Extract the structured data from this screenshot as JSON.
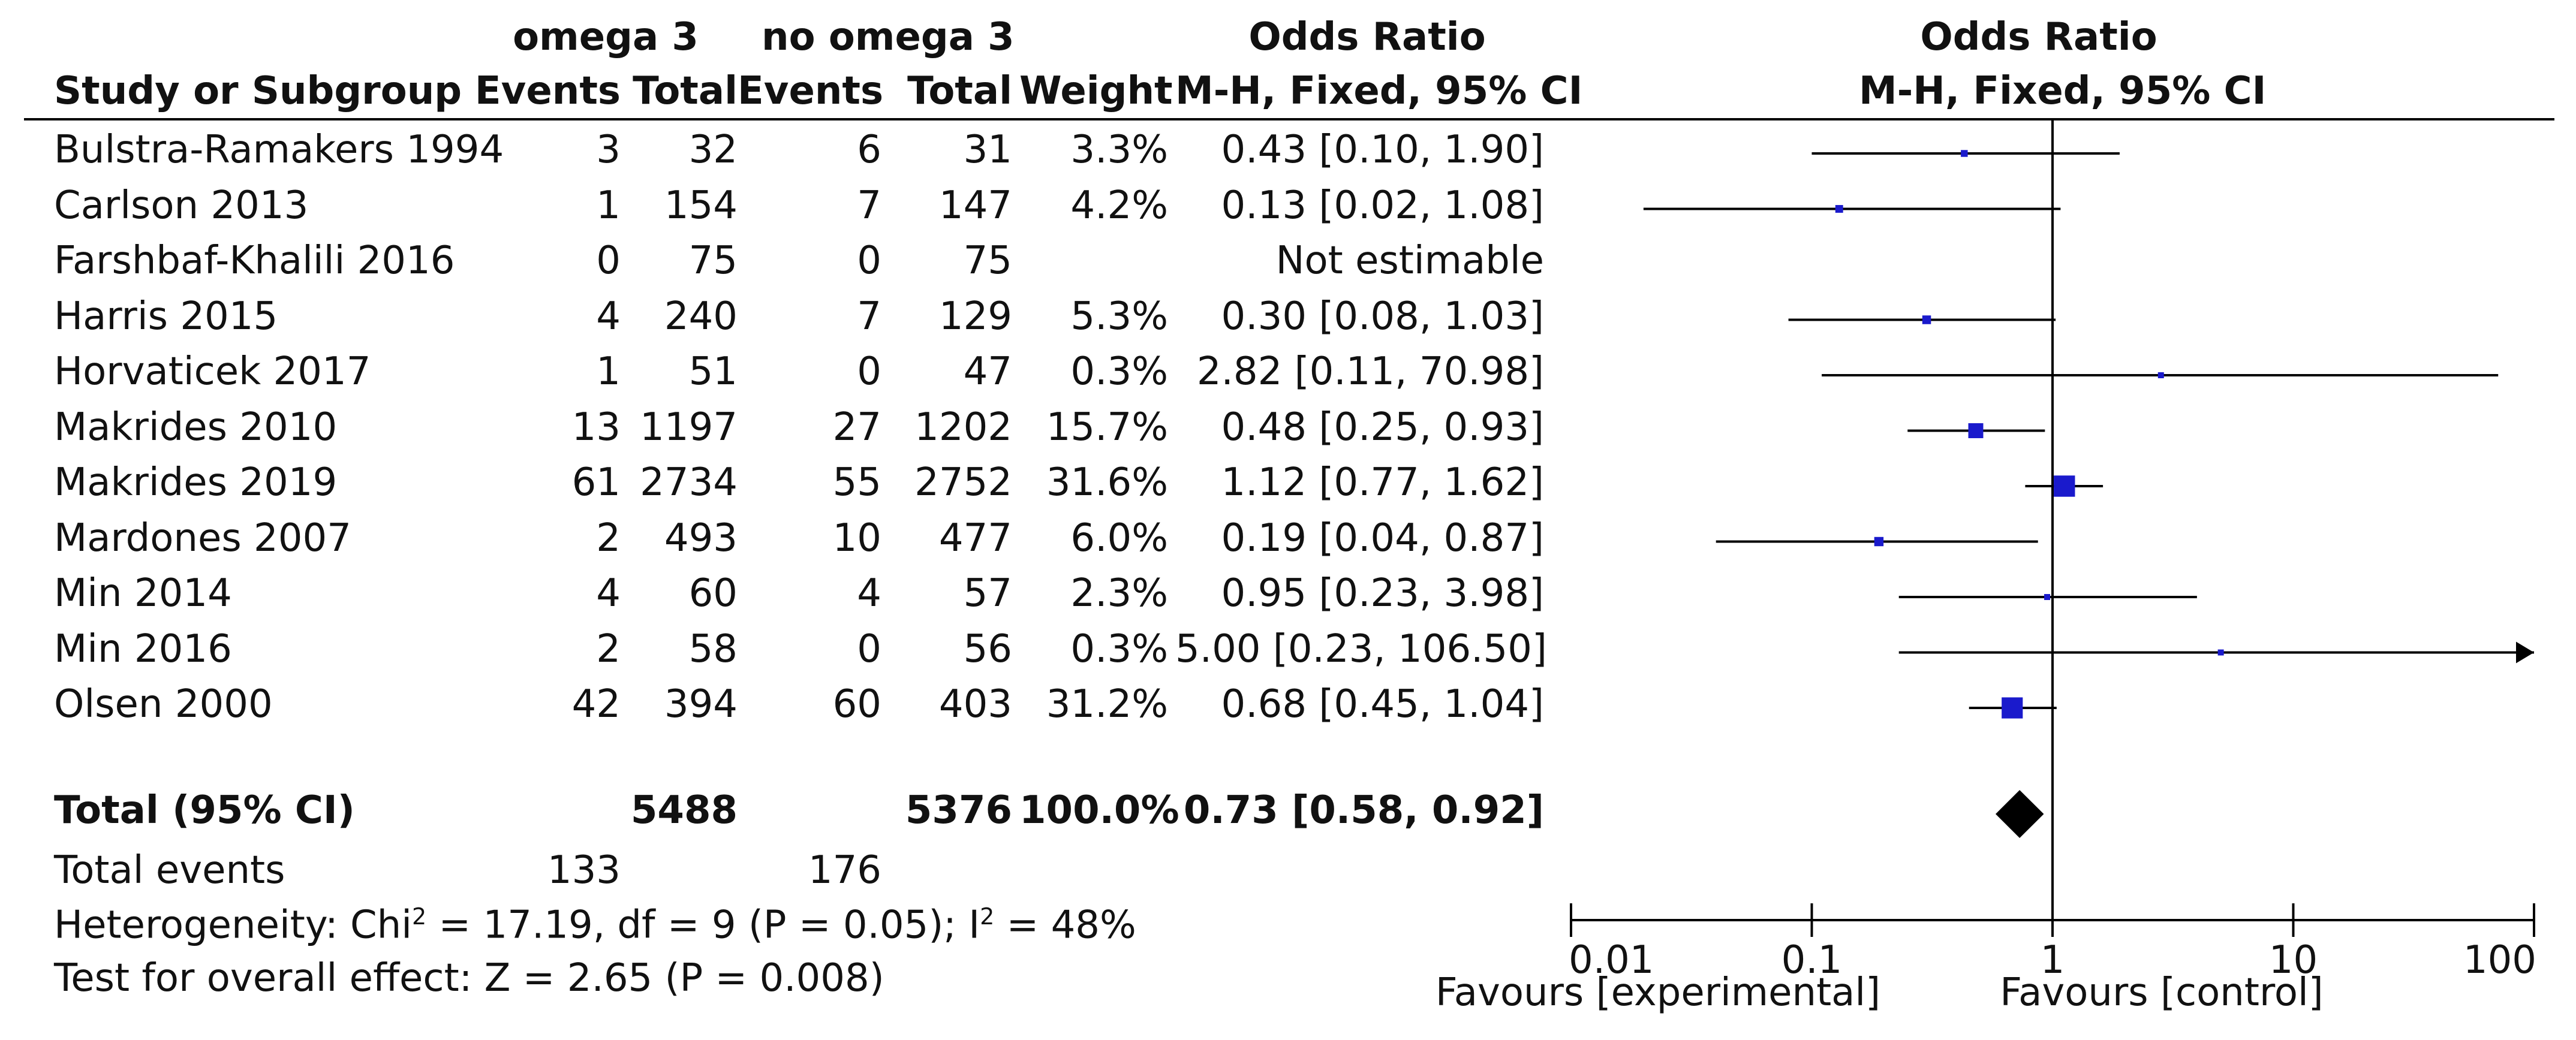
{
  "header": {
    "group1": "omega 3",
    "group2": "no omega 3",
    "odds_ratio_table": "Odds Ratio",
    "odds_ratio_plot": "Odds Ratio",
    "study": "Study or Subgroup",
    "events1": "Events",
    "total1": "Total",
    "events2": "Events",
    "total2": "Total",
    "weight": "Weight",
    "method_table": "M-H, Fixed, 95% CI",
    "method_plot": "M-H, Fixed, 95% CI"
  },
  "rows": [
    {
      "study": "Bulstra-Ramakers 1994",
      "e1": "3",
      "t1": "32",
      "e2": "6",
      "t2": "31",
      "weight": "3.3%",
      "ci_text": "0.43 [0.10, 1.90]"
    },
    {
      "study": "Carlson 2013",
      "e1": "1",
      "t1": "154",
      "e2": "7",
      "t2": "147",
      "weight": "4.2%",
      "ci_text": "0.13 [0.02, 1.08]"
    },
    {
      "study": "Farshbaf-Khalili 2016",
      "e1": "0",
      "t1": "75",
      "e2": "0",
      "t2": "75",
      "weight": "",
      "ci_text": "Not estimable"
    },
    {
      "study": "Harris 2015",
      "e1": "4",
      "t1": "240",
      "e2": "7",
      "t2": "129",
      "weight": "5.3%",
      "ci_text": "0.30 [0.08, 1.03]"
    },
    {
      "study": "Horvaticek 2017",
      "e1": "1",
      "t1": "51",
      "e2": "0",
      "t2": "47",
      "weight": "0.3%",
      "ci_text": "2.82 [0.11, 70.98]"
    },
    {
      "study": "Makrides 2010",
      "e1": "13",
      "t1": "1197",
      "e2": "27",
      "t2": "1202",
      "weight": "15.7%",
      "ci_text": "0.48 [0.25, 0.93]"
    },
    {
      "study": "Makrides 2019",
      "e1": "61",
      "t1": "2734",
      "e2": "55",
      "t2": "2752",
      "weight": "31.6%",
      "ci_text": "1.12 [0.77, 1.62]"
    },
    {
      "study": "Mardones 2007",
      "e1": "2",
      "t1": "493",
      "e2": "10",
      "t2": "477",
      "weight": "6.0%",
      "ci_text": "0.19 [0.04, 0.87]"
    },
    {
      "study": "Min 2014",
      "e1": "4",
      "t1": "60",
      "e2": "4",
      "t2": "57",
      "weight": "2.3%",
      "ci_text": "0.95 [0.23, 3.98]"
    },
    {
      "study": "Min 2016",
      "e1": "2",
      "t1": "58",
      "e2": "0",
      "t2": "56",
      "weight": "0.3%",
      "ci_text": "5.00 [0.23, 106.50]"
    },
    {
      "study": "Olsen 2000",
      "e1": "42",
      "t1": "394",
      "e2": "60",
      "t2": "403",
      "weight": "31.2%",
      "ci_text": "0.68 [0.45, 1.04]"
    }
  ],
  "total": {
    "label": "Total (95% CI)",
    "t1": "5488",
    "t2": "5376",
    "weight": "100.0%",
    "ci_text": "0.73 [0.58, 0.92]"
  },
  "total_events": {
    "label": "Total events",
    "e1": "133",
    "e2": "176"
  },
  "heterogeneity": {
    "prefix": "Heterogeneity: Chi",
    "sup1": "2",
    "mid": " = 17.19, df = 9 (P = 0.05); I",
    "sup2": "2",
    "suffix": " = 48%"
  },
  "overall_effect": "Test for overall effect: Z = 2.65 (P = 0.008)",
  "axis": {
    "favours_left": "Favours [experimental]",
    "favours_right": "Favours [control]"
  },
  "colors": {
    "marker": "#1a1acc",
    "diamond": "#000000",
    "line": "#000000"
  },
  "chart_data": {
    "type": "forest",
    "scale": "log",
    "xlim": [
      0.01,
      100
    ],
    "ticks": [
      0.01,
      0.1,
      1,
      10,
      100
    ],
    "tick_labels": [
      "0.01",
      "0.1",
      "1",
      "10",
      "100"
    ],
    "null_value": 1,
    "studies": [
      {
        "name": "Bulstra-Ramakers 1994",
        "or": 0.43,
        "lo": 0.1,
        "hi": 1.9,
        "weight": 3.3
      },
      {
        "name": "Carlson 2013",
        "or": 0.13,
        "lo": 0.02,
        "hi": 1.08,
        "weight": 4.2
      },
      {
        "name": "Farshbaf-Khalili 2016",
        "or": null,
        "lo": null,
        "hi": null,
        "weight": null
      },
      {
        "name": "Harris 2015",
        "or": 0.3,
        "lo": 0.08,
        "hi": 1.03,
        "weight": 5.3
      },
      {
        "name": "Horvaticek 2017",
        "or": 2.82,
        "lo": 0.11,
        "hi": 70.98,
        "weight": 0.3
      },
      {
        "name": "Makrides 2010",
        "or": 0.48,
        "lo": 0.25,
        "hi": 0.93,
        "weight": 15.7
      },
      {
        "name": "Makrides 2019",
        "or": 1.12,
        "lo": 0.77,
        "hi": 1.62,
        "weight": 31.6
      },
      {
        "name": "Mardones 2007",
        "or": 0.19,
        "lo": 0.04,
        "hi": 0.87,
        "weight": 6.0
      },
      {
        "name": "Min 2014",
        "or": 0.95,
        "lo": 0.23,
        "hi": 3.98,
        "weight": 2.3
      },
      {
        "name": "Min 2016",
        "or": 5.0,
        "lo": 0.23,
        "hi": 106.5,
        "weight": 0.3
      },
      {
        "name": "Olsen 2000",
        "or": 0.68,
        "lo": 0.45,
        "hi": 1.04,
        "weight": 31.2
      }
    ],
    "pooled": {
      "or": 0.73,
      "lo": 0.58,
      "hi": 0.92
    }
  }
}
